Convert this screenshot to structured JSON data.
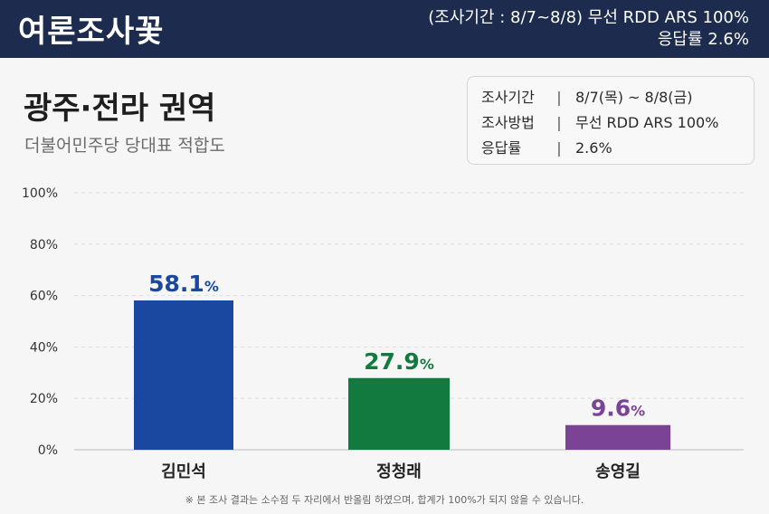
{
  "header": {
    "brand": "여론조사꽃",
    "period_line": "(조사기간 : 8/7~8/8) 무선 RDD ARS 100%",
    "response_line": "응답률 2.6%"
  },
  "title": "광주·전라 권역",
  "subtitle": "더불어민주당 당대표 적합도",
  "info": [
    {
      "label": "조사기간",
      "value": "8/7(목) ~ 8/8(금)"
    },
    {
      "label": "조사방법",
      "value": "무선 RDD ARS 100%"
    },
    {
      "label": "응답률",
      "value": "2.6%"
    }
  ],
  "footnote": "※ 본 조사 결과는 소수점 두 자리에서 반올림 하였으며, 합계가 100%가 되지 않을 수 있습니다.",
  "colors": {
    "header_bg": "#1c2b4e",
    "kim": "#1a47a0",
    "jeong": "#127a3e",
    "song": "#7a4396"
  },
  "chart_data": {
    "type": "bar",
    "categories": [
      "김민석",
      "정청래",
      "송영길"
    ],
    "values": [
      58.1,
      27.9,
      9.6
    ],
    "value_labels": [
      "58.1",
      "27.9",
      "9.6"
    ],
    "value_unit": "%",
    "colors": [
      "#1a47a0",
      "#127a3e",
      "#7a4396"
    ],
    "ylim": [
      0,
      100
    ],
    "yticks": [
      "0%",
      "20%",
      "40%",
      "60%",
      "80%",
      "100%"
    ],
    "grid": true
  }
}
